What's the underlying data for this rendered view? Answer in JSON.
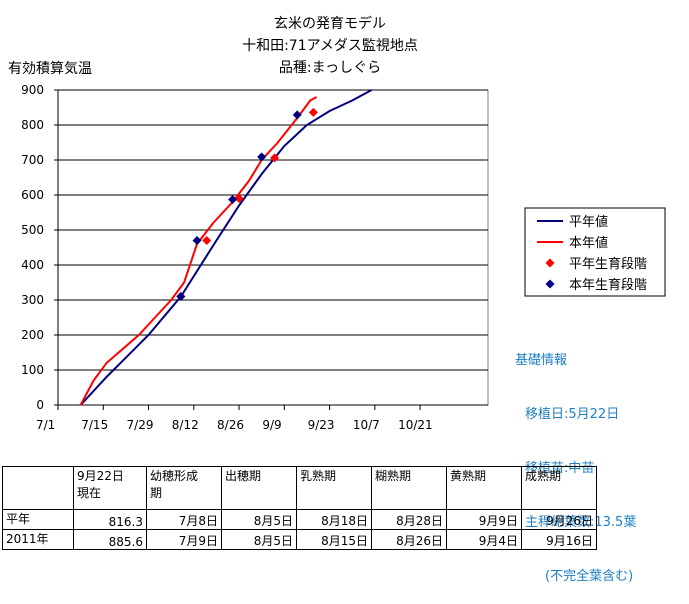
{
  "title": [
    "玄米の発育モデル",
    "十和田:71アメダス監視地点",
    "品種:まっしぐら"
  ],
  "ylabel": "有効積算気温",
  "chart_data": {
    "type": "line",
    "ylabel": "有効積算気温",
    "ylim": [
      0,
      900
    ],
    "yticks": [
      "0",
      "100",
      "200",
      "300",
      "400",
      "500",
      "600",
      "700",
      "800",
      "900"
    ],
    "xlim_days_from_jul1": [
      0,
      133
    ],
    "xticks": [
      {
        "label": "7/1",
        "day": 0
      },
      {
        "label": "7/15",
        "day": 14
      },
      {
        "label": "7/29",
        "day": 28
      },
      {
        "label": "8/12",
        "day": 42
      },
      {
        "label": "8/26",
        "day": 56
      },
      {
        "label": "9/9",
        "day": 70
      },
      {
        "label": "9/23",
        "day": 84
      },
      {
        "label": "10/7",
        "day": 98
      },
      {
        "label": "10/21",
        "day": 112
      }
    ],
    "grid": "horizontal",
    "legend_position": "right",
    "series": [
      {
        "name": "平年値",
        "type": "line",
        "color": "#00007f",
        "points": [
          [
            7,
            0
          ],
          [
            15,
            80
          ],
          [
            28,
            200
          ],
          [
            38,
            310
          ],
          [
            49,
            470
          ],
          [
            56,
            570
          ],
          [
            63,
            660
          ],
          [
            70,
            740
          ],
          [
            77,
            800
          ],
          [
            84,
            840
          ],
          [
            91,
            870
          ],
          [
            97,
            900
          ]
        ]
      },
      {
        "name": "本年値",
        "type": "line",
        "color": "#ff0000",
        "points": [
          [
            7,
            0
          ],
          [
            11,
            70
          ],
          [
            15,
            120
          ],
          [
            20,
            160
          ],
          [
            25,
            200
          ],
          [
            30,
            250
          ],
          [
            35,
            300
          ],
          [
            39,
            350
          ],
          [
            43,
            460
          ],
          [
            48,
            520
          ],
          [
            54,
            580
          ],
          [
            59,
            640
          ],
          [
            63,
            700
          ],
          [
            68,
            750
          ],
          [
            74,
            820
          ],
          [
            78,
            870
          ],
          [
            80,
            880
          ]
        ]
      },
      {
        "name": "平年生育段階",
        "type": "scatter",
        "color": "#ff0000",
        "points": [
          [
            38,
            310
          ],
          [
            46,
            470
          ],
          [
            56,
            590
          ],
          [
            67,
            706
          ],
          [
            79,
            836
          ]
        ]
      },
      {
        "name": "本年生育段階",
        "type": "scatter",
        "color": "#00007f",
        "points": [
          [
            38,
            310
          ],
          [
            43,
            470
          ],
          [
            54,
            587
          ],
          [
            63,
            709
          ],
          [
            74,
            829
          ]
        ]
      }
    ]
  },
  "info": {
    "heading": "基礎情報",
    "lines": [
      "移植日:5月22日",
      "移植苗:中苗",
      "主稈総葉数:13.5葉",
      "(不完全葉含む)"
    ]
  },
  "table": {
    "header": [
      "",
      "9月22日\n現在",
      "幼穂形成\n期",
      "出穂期",
      "乳熟期",
      "糊熟期",
      "黄熟期",
      "成熟期"
    ],
    "rows": [
      [
        "平年",
        "816.3",
        "7月8日",
        "8月5日",
        "8月18日",
        "8月28日",
        "9月9日",
        "9月26日"
      ],
      [
        "2011年",
        "885.6",
        "7月9日",
        "8月5日",
        "8月15日",
        "8月26日",
        "9月4日",
        "9月16日"
      ]
    ]
  }
}
